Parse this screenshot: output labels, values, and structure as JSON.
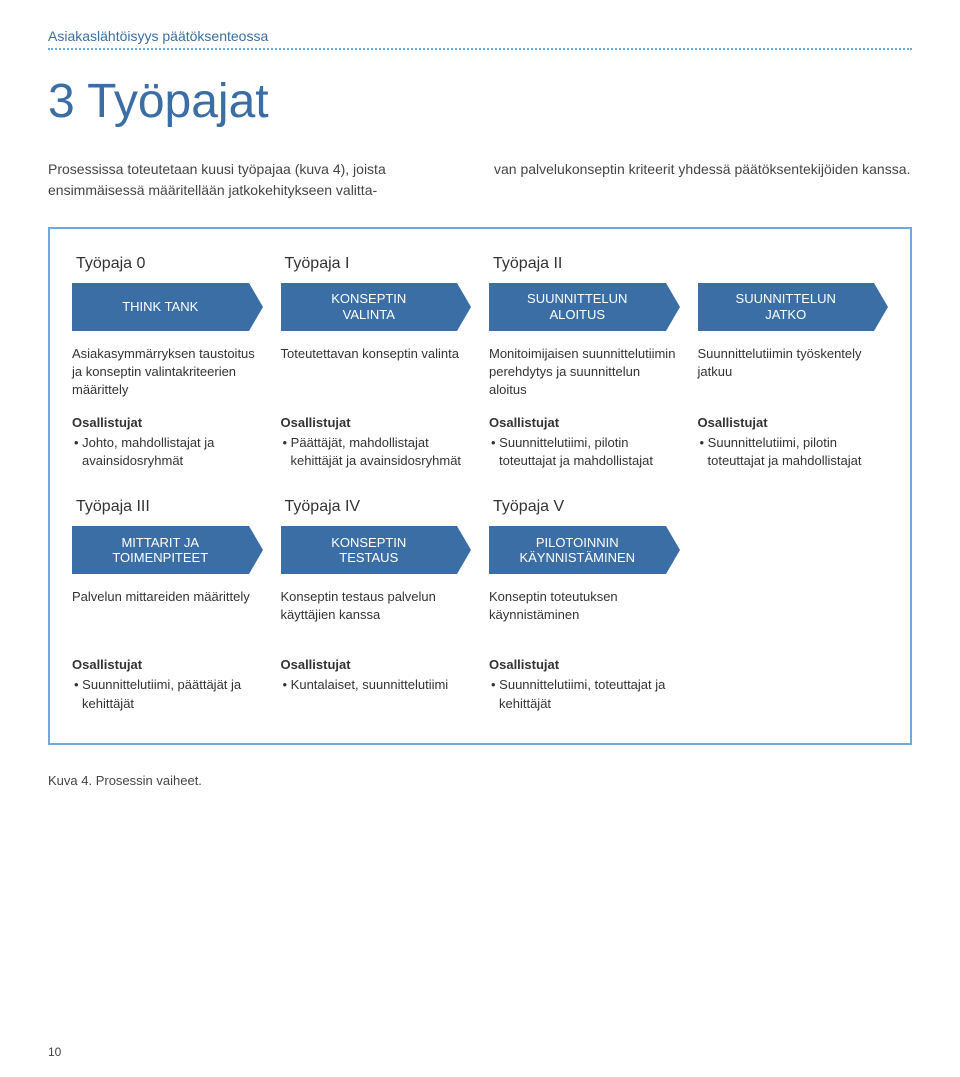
{
  "header": {
    "section_label": "Asiakaslähtöisyys päätöksenteossa",
    "title": "3 Työpajat"
  },
  "intro": {
    "left": "Prosessissa toteutetaan kuusi työpajaa (kuva 4), joista ensimmäisessä määritellään jatkokehitykseen valitta-",
    "right": "van palvelukonseptin kriteerit yhdessä päätöksentekijöiden kanssa."
  },
  "labels": {
    "participants": "Osallistujat"
  },
  "colors": {
    "arrow_fill": "#3a6ea5",
    "border": "#6fa8dc",
    "title": "#3a6ea5"
  },
  "stages_top": [
    {
      "title": "Työpaja 0",
      "arrow": "THINK TANK",
      "desc": "Asiakasymmärryksen taustoitus ja konseptin valintakriteerien määrittely",
      "participants": "• Johto, mahdollistajat ja avainsidosryhmät"
    },
    {
      "title": "Työpaja I",
      "arrow": "KONSEPTIN\nVALINTA",
      "desc": "Toteutettavan konseptin valinta",
      "participants": "• Päättäjät, mahdollistajat kehittäjät ja avainsidosryhmät"
    },
    {
      "title": "Työpaja II",
      "arrow": "SUUNNITTELUN\nALOITUS",
      "desc": "Monitoimijaisen suunnittelutiimin perehdytys ja suunnittelun aloitus",
      "participants": "• Suunnittelutiimi, pilotin toteuttajat ja mahdollistajat"
    },
    {
      "title": "",
      "arrow": "SUUNNITTELUN\nJATKO",
      "desc": "Suunnittelutiimin työskentely jatkuu",
      "participants": "• Suunnittelutiimi, pilotin toteuttajat ja mahdollistajat"
    }
  ],
  "stages_bottom": [
    {
      "title": "Työpaja III",
      "arrow": "MITTARIT JA\nTOIMENPITEET",
      "desc": "Palvelun mittareiden määrittely",
      "participants": "• Suunnittelutiimi, päättäjät ja kehittäjät"
    },
    {
      "title": "Työpaja IV",
      "arrow": "KONSEPTIN\nTESTAUS",
      "desc": "Konseptin testaus palvelun käyttäjien kanssa",
      "participants": "• Kuntalaiset, suunnittelutiimi"
    },
    {
      "title": "Työpaja V",
      "arrow": "PILOTOINNIN\nKÄYNNISTÄMINEN",
      "desc": "Konseptin toteutuksen käynnistäminen",
      "participants": "• Suunnittelutiimi, toteuttajat ja kehittäjät"
    }
  ],
  "caption": "Kuva 4. Prosessin vaiheet.",
  "page_number": "10"
}
